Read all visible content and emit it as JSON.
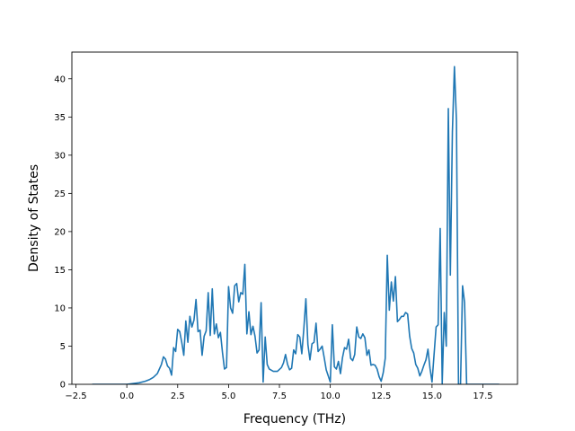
{
  "chart_data": {
    "type": "line",
    "xlabel": "Frequency (THz)",
    "ylabel": "Density of States",
    "xlim": [
      -2.7,
      19.2
    ],
    "ylim": [
      0,
      43.5
    ],
    "xticks": [
      -2.5,
      0.0,
      2.5,
      5.0,
      7.5,
      10.0,
      12.5,
      15.0,
      17.5
    ],
    "xtick_labels": [
      "−2.5",
      "0.0",
      "2.5",
      "5.0",
      "7.5",
      "10.0",
      "12.5",
      "15.0",
      "17.5"
    ],
    "yticks": [
      0,
      5,
      10,
      15,
      20,
      25,
      30,
      35,
      40
    ],
    "ytick_labels": [
      "0",
      "5",
      "10",
      "15",
      "20",
      "25",
      "30",
      "35",
      "40"
    ],
    "grid": false,
    "line_color": "#1f77b4",
    "series": [
      {
        "x": [
          -1.7,
          -1.0,
          -0.5,
          0.0,
          0.3,
          0.6,
          0.9,
          1.1,
          1.3,
          1.5,
          1.6,
          1.7,
          1.8,
          1.9,
          2.0,
          2.1,
          2.2,
          2.3,
          2.4,
          2.5,
          2.6,
          2.7,
          2.8,
          2.9,
          3.0,
          3.1,
          3.2,
          3.3,
          3.4,
          3.5,
          3.6,
          3.7,
          3.8,
          3.9,
          4.0,
          4.1,
          4.2,
          4.3,
          4.4,
          4.5,
          4.6,
          4.7,
          4.8,
          4.9,
          5.0,
          5.1,
          5.2,
          5.3,
          5.4,
          5.5,
          5.6,
          5.7,
          5.8,
          5.9,
          6.0,
          6.1,
          6.2,
          6.3,
          6.4,
          6.5,
          6.6,
          6.7,
          6.8,
          6.9,
          7.0,
          7.2,
          7.4,
          7.6,
          7.7,
          7.8,
          7.9,
          8.0,
          8.1,
          8.2,
          8.3,
          8.4,
          8.5,
          8.6,
          8.7,
          8.8,
          8.9,
          9.0,
          9.1,
          9.2,
          9.3,
          9.4,
          9.5,
          9.6,
          9.7,
          9.8,
          9.9,
          10.0,
          10.1,
          10.2,
          10.3,
          10.4,
          10.5,
          10.6,
          10.7,
          10.8,
          10.9,
          11.0,
          11.1,
          11.2,
          11.3,
          11.4,
          11.5,
          11.6,
          11.7,
          11.8,
          11.9,
          12.0,
          12.1,
          12.2,
          12.3,
          12.4,
          12.5,
          12.6,
          12.7,
          12.8,
          12.9,
          13.0,
          13.1,
          13.2,
          13.3,
          13.4,
          13.5,
          13.6,
          13.7,
          13.8,
          13.9,
          14.0,
          14.1,
          14.2,
          14.3,
          14.4,
          14.5,
          14.6,
          14.7,
          14.8,
          14.9,
          15.0,
          15.1,
          15.2,
          15.3,
          15.4,
          15.5,
          15.6,
          15.7,
          15.8,
          15.9,
          16.0,
          16.1,
          16.2,
          16.3,
          16.4,
          16.5,
          16.6,
          16.7,
          16.8,
          17.0,
          17.5,
          18.3
        ],
        "y": [
          0,
          0,
          0,
          0,
          0.1,
          0.2,
          0.4,
          0.6,
          0.9,
          1.4,
          2.0,
          2.6,
          3.6,
          3.3,
          2.4,
          2.1,
          1.2,
          4.8,
          4.3,
          7.2,
          6.9,
          5.5,
          3.8,
          8.3,
          5.5,
          8.9,
          7.5,
          8.4,
          11.1,
          6.9,
          7.1,
          3.8,
          6.3,
          7.0,
          12.0,
          6.4,
          12.5,
          6.6,
          7.9,
          6.1,
          6.8,
          4.2,
          2.0,
          2.2,
          12.8,
          10.0,
          9.3,
          12.9,
          13.2,
          10.8,
          12.0,
          11.8,
          15.7,
          6.6,
          9.5,
          6.5,
          7.6,
          6.3,
          4.1,
          4.5,
          10.7,
          0.3,
          6.2,
          2.6,
          2.0,
          1.7,
          1.7,
          2.2,
          2.8,
          3.9,
          2.6,
          1.9,
          2.1,
          4.5,
          4.0,
          6.5,
          6.2,
          4.0,
          7.3,
          11.2,
          5.2,
          3.2,
          5.3,
          5.5,
          8.0,
          4.3,
          4.6,
          5.0,
          3.5,
          1.9,
          1.1,
          0.3,
          7.8,
          2.3,
          2.0,
          3.0,
          1.4,
          3.5,
          4.8,
          4.6,
          5.9,
          3.4,
          3.1,
          3.9,
          7.5,
          6.2,
          6.0,
          6.6,
          6.1,
          3.8,
          4.5,
          2.5,
          2.6,
          2.5,
          2.0,
          1.0,
          0.4,
          1.5,
          3.4,
          16.9,
          9.7,
          13.4,
          10.9,
          14.1,
          8.2,
          8.5,
          8.9,
          8.9,
          9.4,
          9.2,
          6.3,
          4.7,
          4.1,
          2.6,
          2.1,
          1.1,
          1.7,
          2.5,
          3.2,
          4.6,
          2.1,
          0.3,
          3.9,
          7.5,
          7.8,
          20.4,
          0.1,
          9.4,
          5.0,
          36.1,
          14.3,
          33.0,
          41.6,
          34.5,
          0.0,
          0.0,
          12.9,
          10.7,
          0.0,
          0.0,
          0.0,
          0.0,
          0.0
        ]
      }
    ]
  }
}
